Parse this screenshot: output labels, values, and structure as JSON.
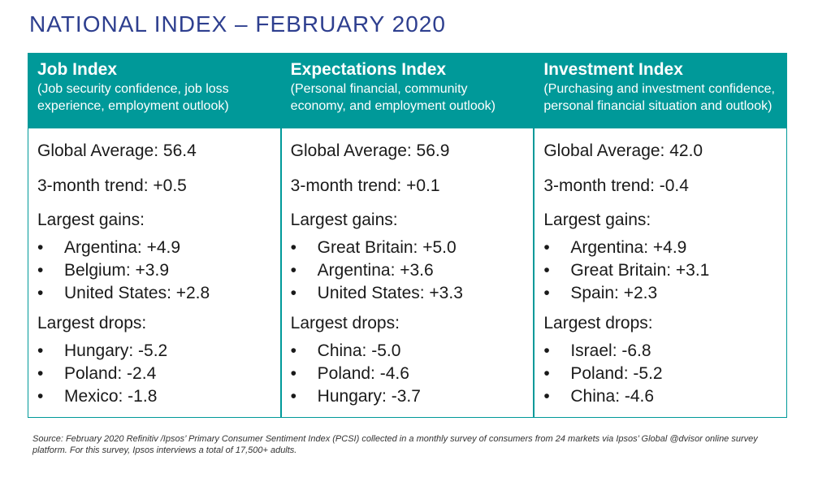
{
  "title": "NATIONAL INDEX – FEBRUARY 2020",
  "columns": [
    {
      "heading": "Job Index",
      "subheading": "(Job security confidence, job loss experience, employment outlook)",
      "average": "Global Average: 56.4",
      "trend": "3-month trend: +0.5",
      "gains_label": "Largest gains:",
      "gains": [
        "Argentina: +4.9",
        "Belgium: +3.9",
        "United States: +2.8"
      ],
      "drops_label": "Largest drops:",
      "drops": [
        "Hungary: -5.2",
        "Poland: -2.4",
        "Mexico: -1.8"
      ]
    },
    {
      "heading": "Expectations Index",
      "subheading": "(Personal financial, community economy, and employment outlook)",
      "average": "Global Average: 56.9",
      "trend": "3-month trend: +0.1",
      "gains_label": "Largest gains:",
      "gains": [
        "Great Britain: +5.0",
        "Argentina: +3.6",
        "United States: +3.3"
      ],
      "drops_label": "Largest drops:",
      "drops": [
        "China: -5.0",
        "Poland: -4.6",
        "Hungary: -3.7"
      ]
    },
    {
      "heading": "Investment Index",
      "subheading": "(Purchasing and investment confidence, personal financial situation and outlook)",
      "average": "Global Average: 42.0",
      "trend": "3-month trend: -0.4",
      "gains_label": "Largest gains:",
      "gains": [
        "Argentina: +4.9",
        "Great Britain: +3.1",
        "Spain: +2.3"
      ],
      "drops_label": "Largest drops:",
      "drops": [
        "Israel: -6.8",
        "Poland: -5.2",
        "China: -4.6"
      ]
    }
  ],
  "bullet": "•",
  "source": "Source: February 2020 Refinitiv /Ipsos’ Primary Consumer Sentiment Index (PCSI) collected in a monthly survey of consumers from 24 markets via Ipsos’ Global @dvisor online survey platform. For this survey, Ipsos interviews a total of 17,500+ adults.",
  "colors": {
    "title": "#2e3f8f",
    "header_bg": "#009999",
    "border": "#009999"
  }
}
